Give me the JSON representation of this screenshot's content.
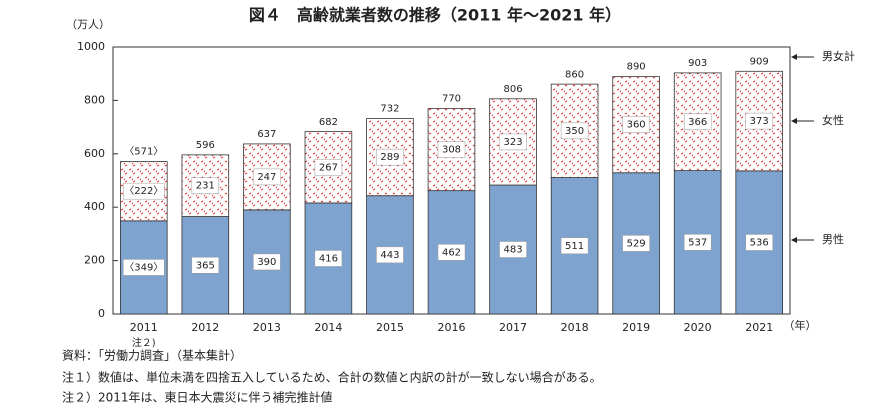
{
  "chart_data": {
    "type": "stacked-bar",
    "title": "図４　高齢就業者数の推移（2011 年～2021 年）",
    "y_unit": "（万人）",
    "x_unit": "（年）",
    "categories": [
      "2011",
      "2012",
      "2013",
      "2014",
      "2015",
      "2016",
      "2017",
      "2018",
      "2019",
      "2020",
      "2021"
    ],
    "category_notes": [
      "注２)",
      null,
      null,
      null,
      null,
      null,
      null,
      null,
      null,
      null,
      null
    ],
    "series": [
      {
        "name": "男性",
        "color": "#7fa3cf",
        "values": [
          349,
          365,
          390,
          416,
          443,
          462,
          483,
          511,
          529,
          537,
          536
        ],
        "value_labels": [
          "〈349〉",
          null,
          null,
          null,
          null,
          null,
          null,
          null,
          null,
          null,
          null
        ]
      },
      {
        "name": "女性",
        "color": "#e03030",
        "values": [
          222,
          231,
          247,
          267,
          289,
          308,
          323,
          350,
          360,
          366,
          373
        ],
        "value_labels": [
          "〈222〉",
          null,
          null,
          null,
          null,
          null,
          null,
          null,
          null,
          null,
          null
        ]
      }
    ],
    "totals": {
      "name": "男女計",
      "values": [
        571,
        596,
        637,
        682,
        732,
        770,
        806,
        860,
        890,
        903,
        909
      ],
      "value_labels": [
        "〈571〉",
        null,
        null,
        null,
        null,
        null,
        null,
        null,
        null,
        null,
        null
      ]
    },
    "ylim": [
      0,
      1000
    ],
    "yticks": [
      0,
      200,
      400,
      600,
      800,
      1000
    ],
    "notes": [
      "資料：「労働力調査」（基本集計）",
      "注１）数値は、単位未満を四捨五入しているため、合計の数値と内訳の計が一致しない場合がある。",
      "注２）2011年は、東日本大震災に伴う補完推計値"
    ]
  }
}
